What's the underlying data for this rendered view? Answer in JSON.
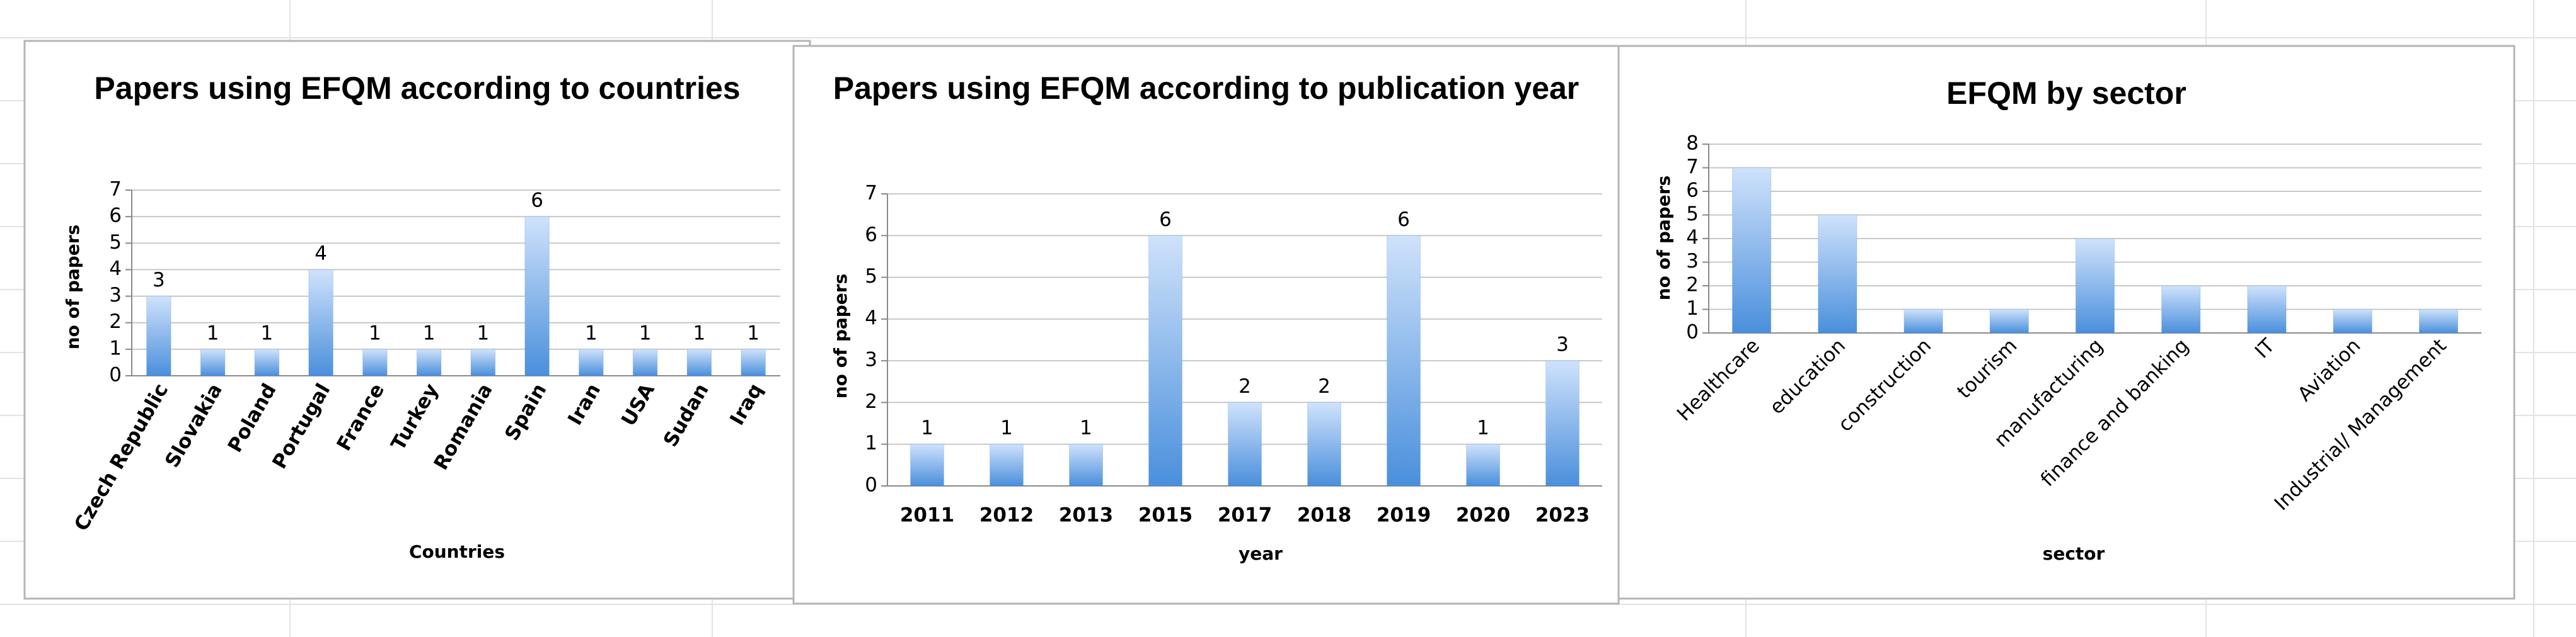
{
  "chart_data": [
    {
      "type": "bar",
      "title": "Papers using EFQM according to countries",
      "x_label": "Countries",
      "y_label": "no of papers",
      "categories": [
        "Czech Republic",
        "Slovakia",
        "Poland",
        "Portugal",
        "France",
        "Turkey",
        "Romania",
        "Spain",
        "Iran",
        "USA",
        "Sudan",
        "Iraq"
      ],
      "values": [
        3,
        1,
        1,
        4,
        1,
        1,
        1,
        6,
        1,
        1,
        1,
        1
      ],
      "ylim": [
        0,
        7
      ],
      "yticks": [
        0,
        1,
        2,
        3,
        4,
        5,
        6,
        7
      ],
      "grid": true,
      "data_labels": true,
      "color": "#4a8fdc"
    },
    {
      "type": "bar",
      "title": "Papers using EFQM according to publication year",
      "x_label": "year",
      "y_label": "no of papers",
      "categories": [
        "2011",
        "2012",
        "2013",
        "2015",
        "2017",
        "2018",
        "2019",
        "2020",
        "2023"
      ],
      "values": [
        1,
        1,
        1,
        6,
        2,
        2,
        6,
        1,
        3
      ],
      "ylim": [
        0,
        7
      ],
      "yticks": [
        0,
        1,
        2,
        3,
        4,
        5,
        6,
        7
      ],
      "grid": true,
      "data_labels": true,
      "color": "#4a8fdc"
    },
    {
      "type": "bar",
      "title": "EFQM by sector",
      "x_label": "sector",
      "y_label": "no of papers",
      "categories": [
        "Healthcare",
        "education",
        "construction",
        "tourism",
        "manufacturing",
        "finance and banking",
        "IT",
        "Aviation",
        "Industrial/ Management"
      ],
      "values": [
        7,
        5,
        1,
        1,
        4,
        2,
        2,
        1,
        1
      ],
      "ylim": [
        0,
        8
      ],
      "yticks": [
        0,
        1,
        2,
        3,
        4,
        5,
        6,
        7,
        8
      ],
      "grid": true,
      "data_labels": false,
      "color": "#4a8fdc"
    }
  ]
}
